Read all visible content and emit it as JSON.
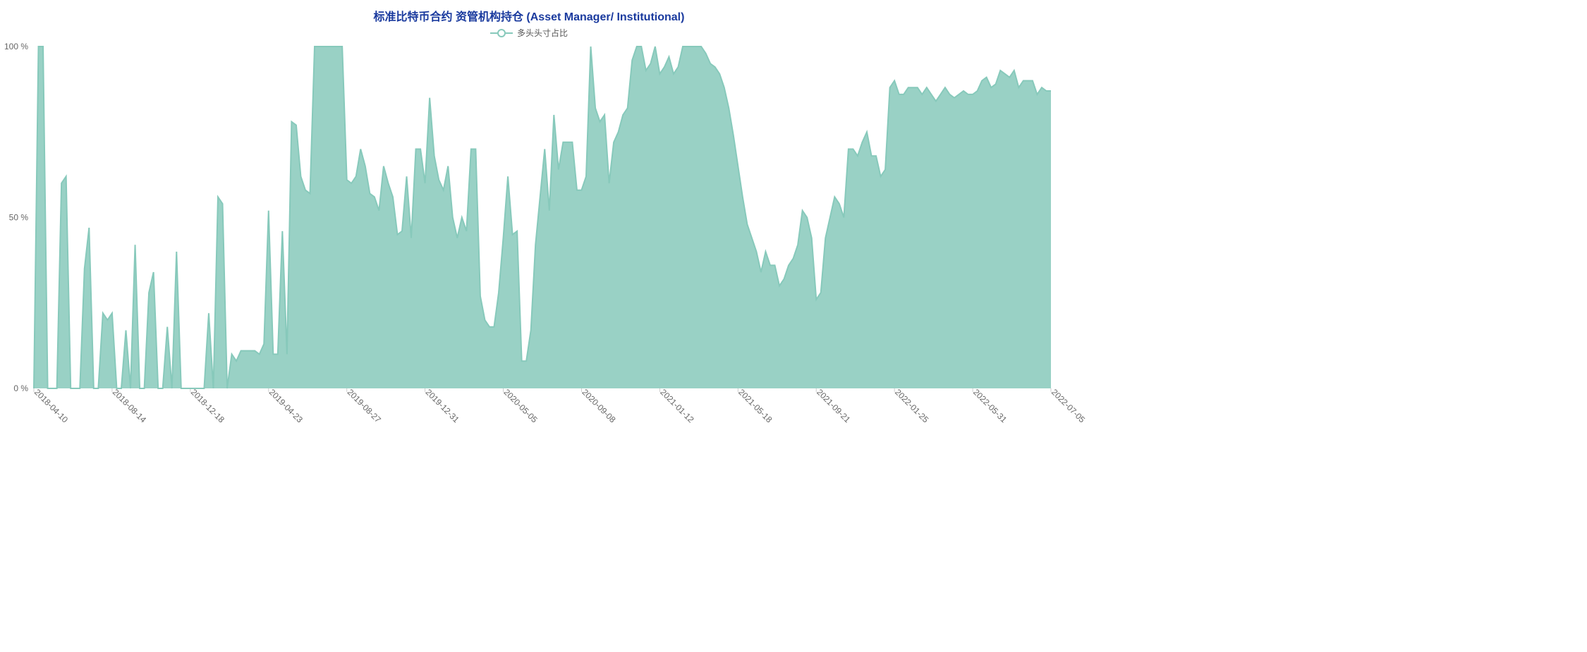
{
  "chart": {
    "type": "area",
    "title": "标准比特币合约 资管机构持仓 (Asset Manager/ Institutional)",
    "title_color": "#1a3a9e",
    "title_fontsize": 16,
    "legend_label": "多头头寸占比",
    "legend_color": "#555555",
    "series_color": "#87c9bb",
    "fill_opacity": 0.85,
    "background_color": "#ffffff",
    "line_width": 2,
    "marker_style": "circle",
    "ylabel_suffix": " %",
    "ylim": [
      0,
      100
    ],
    "ytick_step": 50,
    "yticks": [
      0,
      50,
      100
    ],
    "xlabels": [
      "2018-04-10",
      "2018-08-14",
      "2018-12-18",
      "2019-04-23",
      "2019-08-27",
      "2019-12-31",
      "2020-05-05",
      "2020-09-08",
      "2021-01-12",
      "2021-05-18",
      "2021-09-21",
      "2022-01-25",
      "2022-05-31",
      "2022-07-05"
    ],
    "xlabel_rotation": 45,
    "data": {
      "x_index": [
        0,
        1,
        2,
        3,
        4,
        5,
        6,
        7,
        8,
        9,
        10,
        11,
        12,
        13,
        14,
        15,
        16,
        17,
        18,
        19,
        20,
        21,
        22,
        23,
        24,
        25,
        26,
        27,
        28,
        29,
        30,
        31,
        32,
        33,
        34,
        35,
        36,
        37,
        38,
        39,
        40,
        41,
        42,
        43,
        44,
        45,
        46,
        47,
        48,
        49,
        50,
        51,
        52,
        53,
        54,
        55,
        56,
        57,
        58,
        59,
        60,
        61,
        62,
        63,
        64,
        65,
        66,
        67,
        68,
        69,
        70,
        71,
        72,
        73,
        74,
        75,
        76,
        77,
        78,
        79,
        80,
        81,
        82,
        83,
        84,
        85,
        86,
        87,
        88,
        89,
        90,
        91,
        92,
        93,
        94,
        95,
        96,
        97,
        98,
        99,
        100,
        101,
        102,
        103,
        104,
        105,
        106,
        107,
        108,
        109,
        110,
        111,
        112,
        113,
        114,
        115,
        116,
        117,
        118,
        119,
        120,
        121,
        122,
        123,
        124,
        125,
        126,
        127,
        128,
        129,
        130,
        131,
        132,
        133,
        134,
        135,
        136,
        137,
        138,
        139,
        140,
        141,
        142,
        143,
        144,
        145,
        146,
        147,
        148,
        149,
        150,
        151,
        152,
        153,
        154,
        155,
        156,
        157,
        158,
        159,
        160,
        161,
        162,
        163,
        164,
        165,
        166,
        167,
        168,
        169,
        170,
        171,
        172,
        173,
        174,
        175,
        176,
        177,
        178,
        179,
        180,
        181,
        182,
        183,
        184,
        185,
        186,
        187,
        188,
        189,
        190,
        191,
        192,
        193,
        194,
        195,
        196,
        197,
        198,
        199,
        200,
        201,
        202,
        203,
        204,
        205,
        206,
        207,
        208,
        209,
        210,
        211,
        212,
        213,
        214,
        215,
        216,
        217,
        218,
        219,
        220,
        221
      ],
      "y_percent": [
        0,
        100,
        100,
        0,
        0,
        0,
        60,
        62,
        0,
        0,
        0,
        35,
        47,
        0,
        0,
        22,
        20,
        22,
        0,
        0,
        17,
        0,
        42,
        0,
        0,
        28,
        34,
        0,
        0,
        18,
        0,
        40,
        0,
        0,
        0,
        0,
        0,
        0,
        22,
        0,
        56,
        54,
        0,
        10,
        8,
        11,
        11,
        11,
        11,
        10,
        13,
        52,
        10,
        10,
        46,
        10,
        78,
        77,
        62,
        58,
        57,
        100,
        100,
        100,
        100,
        100,
        100,
        100,
        61,
        60,
        62,
        70,
        65,
        57,
        56,
        52,
        65,
        60,
        56,
        45,
        46,
        62,
        44,
        70,
        70,
        60,
        85,
        68,
        61,
        58,
        65,
        50,
        44,
        50,
        46,
        70,
        70,
        27,
        20,
        18,
        18,
        28,
        44,
        62,
        45,
        46,
        8,
        8,
        17,
        42,
        56,
        70,
        52,
        80,
        64,
        72,
        72,
        72,
        58,
        58,
        62,
        100,
        82,
        78,
        80,
        60,
        72,
        75,
        80,
        82,
        96,
        100,
        100,
        93,
        95,
        100,
        92,
        94,
        97,
        92,
        94,
        100,
        100,
        100,
        100,
        100,
        98,
        95,
        94,
        92,
        88,
        82,
        74,
        65,
        56,
        48,
        44,
        40,
        34,
        40,
        36,
        36,
        30,
        32,
        36,
        38,
        42,
        52,
        50,
        44,
        26,
        28,
        44,
        50,
        56,
        54,
        50,
        70,
        70,
        68,
        72,
        75,
        68,
        68,
        62,
        64,
        88,
        90,
        86,
        86,
        88,
        88,
        88,
        86,
        88,
        86,
        84,
        86,
        88,
        86,
        85,
        86,
        87,
        86,
        86,
        87,
        90,
        91,
        88,
        89,
        93,
        92,
        91,
        93,
        88,
        90,
        90,
        90,
        86,
        88,
        87,
        87
      ]
    },
    "x_range_max": 221
  }
}
